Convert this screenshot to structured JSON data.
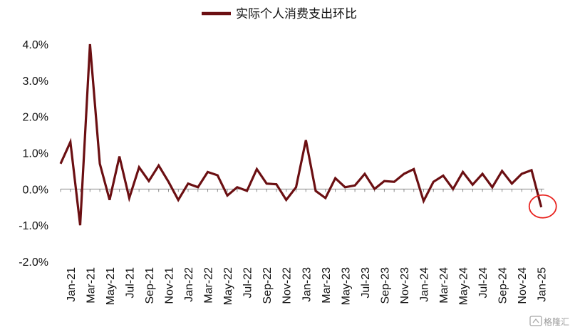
{
  "chart_data": {
    "type": "line",
    "title": "",
    "xlabel": "",
    "ylabel": "",
    "ylim": [
      -2.0,
      4.0
    ],
    "yticks": [
      "4.0%",
      "3.0%",
      "2.0%",
      "1.0%",
      "0.0%",
      "-1.0%",
      "-2.0%"
    ],
    "x_tick_labels": [
      "Jan-21",
      "Mar-21",
      "May-21",
      "Jul-21",
      "Sep-21",
      "Nov-21",
      "Jan-22",
      "Mar-22",
      "May-22",
      "Jul-22",
      "Sep-22",
      "Nov-22",
      "Jan-23",
      "Mar-23",
      "May-23",
      "Jul-23",
      "Sep-23",
      "Nov-23",
      "Jan-24",
      "Mar-24",
      "May-24",
      "Jul-24",
      "Sep-24",
      "Nov-24",
      "Jan-25"
    ],
    "legend_position": "top-center",
    "grid": false,
    "x": [
      "Dec-20",
      "Jan-21",
      "Feb-21",
      "Mar-21",
      "Apr-21",
      "May-21",
      "Jun-21",
      "Jul-21",
      "Aug-21",
      "Sep-21",
      "Oct-21",
      "Nov-21",
      "Dec-21",
      "Jan-22",
      "Feb-22",
      "Mar-22",
      "Apr-22",
      "May-22",
      "Jun-22",
      "Jul-22",
      "Aug-22",
      "Sep-22",
      "Oct-22",
      "Nov-22",
      "Dec-22",
      "Jan-23",
      "Feb-23",
      "Mar-23",
      "Apr-23",
      "May-23",
      "Jun-23",
      "Jul-23",
      "Aug-23",
      "Sep-23",
      "Oct-23",
      "Nov-23",
      "Dec-23",
      "Jan-24",
      "Feb-24",
      "Mar-24",
      "Apr-24",
      "May-24",
      "Jun-24",
      "Jul-24",
      "Aug-24",
      "Sep-24",
      "Oct-24",
      "Nov-24",
      "Dec-24",
      "Jan-25"
    ],
    "series": [
      {
        "name": "实际个人消费支出环比",
        "color": "#6b0f12",
        "values": [
          0.7,
          1.3,
          -1.0,
          4.0,
          0.7,
          -0.3,
          0.9,
          -0.25,
          0.6,
          0.22,
          0.65,
          0.2,
          -0.3,
          0.15,
          0.05,
          0.47,
          0.38,
          -0.18,
          0.05,
          -0.05,
          0.55,
          0.15,
          0.13,
          -0.3,
          0.05,
          1.35,
          -0.05,
          -0.25,
          0.3,
          0.05,
          0.1,
          0.42,
          0.0,
          0.22,
          0.2,
          0.42,
          0.55,
          -0.33,
          0.2,
          0.37,
          0.0,
          0.47,
          0.12,
          0.42,
          0.05,
          0.5,
          0.15,
          0.42,
          0.52,
          -0.5
        ]
      }
    ],
    "annotations": [
      {
        "type": "circle",
        "target_index": 49,
        "color": "#e8231f"
      }
    ]
  },
  "watermark": {
    "text": "格隆汇"
  }
}
